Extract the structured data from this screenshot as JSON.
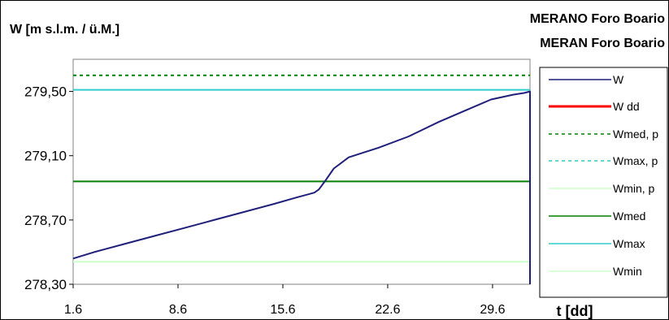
{
  "header": {
    "title_line1": "MERANO Foro Boario",
    "title_line2": "MERAN Foro Boario"
  },
  "chart_data": {
    "type": "line",
    "ylabel": "W [m s.l.m. / ü.M.]",
    "xlabel": "t [dd]",
    "xlim": [
      1.6,
      32.1
    ],
    "ylim": [
      278.3,
      279.7
    ],
    "xticks": [
      "1.6",
      "8.6",
      "15.6",
      "22.6",
      "29.6"
    ],
    "xtick_values": [
      1.6,
      8.6,
      15.6,
      22.6,
      29.6
    ],
    "yticks": [
      "278,30",
      "278,70",
      "279,10",
      "279,50"
    ],
    "ytick_values": [
      278.3,
      278.7,
      279.1,
      279.5
    ],
    "series": [
      {
        "name": "W",
        "color": "#1f1f7a",
        "style": "solid",
        "x": [
          1.6,
          3,
          5,
          7,
          9,
          11,
          13,
          15,
          16.5,
          17.7,
          18,
          18.4,
          19,
          20,
          22,
          24,
          26,
          28,
          29.5,
          31.0,
          31.7,
          32.1,
          32.1
        ],
        "y": [
          278.46,
          278.5,
          278.55,
          278.6,
          278.65,
          278.7,
          278.75,
          278.8,
          278.84,
          278.87,
          278.89,
          278.94,
          279.02,
          279.09,
          279.15,
          279.22,
          279.31,
          279.39,
          279.45,
          279.48,
          279.49,
          279.5,
          278.3
        ]
      },
      {
        "name": "W dd",
        "color": "#ff0000",
        "style": "solid",
        "x": [],
        "y": []
      },
      {
        "name": "Wmed, p",
        "color": "#008000",
        "style": "dashed",
        "value": 279.6
      },
      {
        "name": "Wmax, p",
        "color": "#33cccc",
        "style": "dashed",
        "value": null
      },
      {
        "name": "Wmin, p",
        "color": "#ccffcc",
        "style": "solid",
        "value": null
      },
      {
        "name": "Wmed",
        "color": "#008000",
        "style": "solid",
        "value": 278.94
      },
      {
        "name": "Wmax",
        "color": "#33cccc",
        "style": "solid",
        "value": 279.51
      },
      {
        "name": "Wmin",
        "color": "#ccffcc",
        "style": "solid",
        "value": 278.44
      }
    ],
    "legend_position": "right",
    "grid": false
  }
}
